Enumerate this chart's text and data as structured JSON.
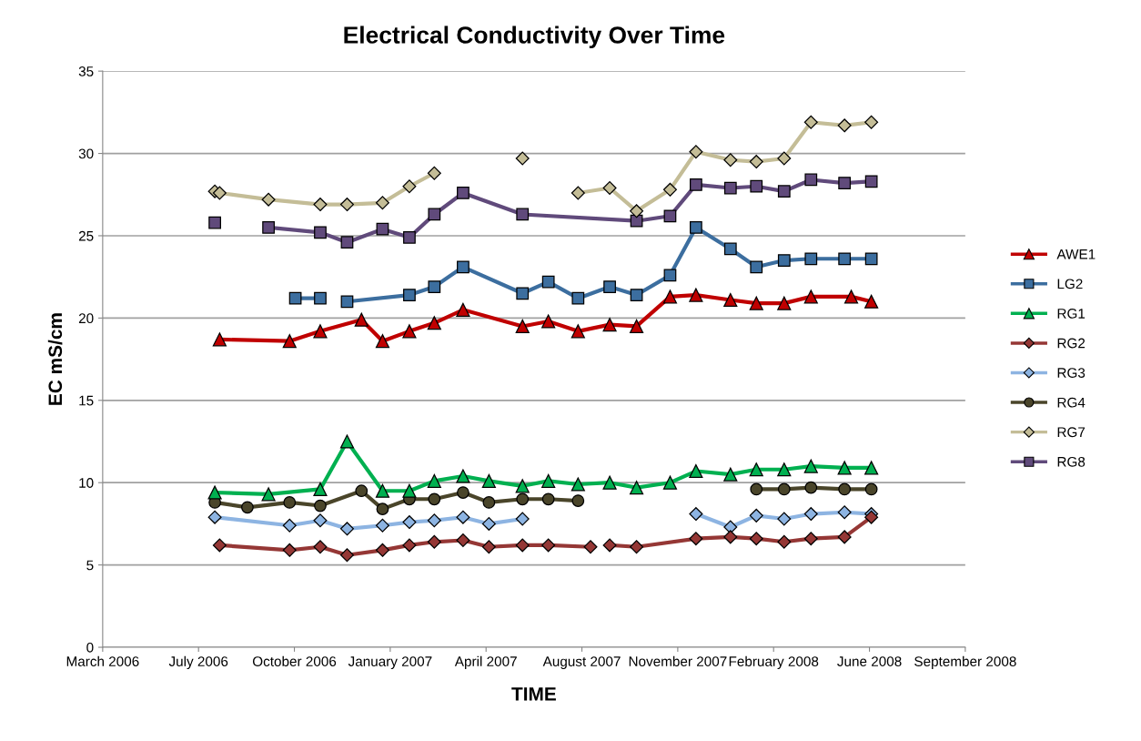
{
  "chart_data": {
    "type": "line",
    "title": "Electrical Conductivity Over Time",
    "xlabel": "TIME",
    "ylabel": "EC mS/cm",
    "xlim": [
      "2006-03-25",
      "2008-09-10"
    ],
    "xticks": [
      {
        "value": "2006-03-25",
        "label": "March 2006"
      },
      {
        "value": "2006-07-03",
        "label": "July 2006"
      },
      {
        "value": "2006-10-11",
        "label": "October 2006"
      },
      {
        "value": "2007-01-19",
        "label": "January 2007"
      },
      {
        "value": "2007-04-29",
        "label": "April 2007"
      },
      {
        "value": "2007-08-07",
        "label": "August 2007"
      },
      {
        "value": "2007-11-15",
        "label": "November 2007"
      },
      {
        "value": "2008-02-23",
        "label": "February 2008"
      },
      {
        "value": "2008-06-02",
        "label": "June 2008"
      },
      {
        "value": "2008-09-10",
        "label": "September 2008"
      }
    ],
    "ylim": [
      0,
      35
    ],
    "yticks": [
      0,
      5,
      10,
      15,
      20,
      25,
      30,
      35
    ],
    "grid": "y",
    "legend": "right",
    "series": [
      {
        "name": "AWE1",
        "color": "#c00000",
        "marker": "triangle",
        "x": [
          "2006-07-25",
          "2006-10-06",
          "2006-11-07",
          "2006-12-20",
          "2007-01-11",
          "2007-02-08",
          "2007-03-06",
          "2007-04-05",
          "2007-06-06",
          "2007-07-03",
          "2007-08-03",
          "2007-09-05",
          "2007-10-03",
          "2007-11-07",
          "2007-12-04",
          "2008-01-09",
          "2008-02-05",
          "2008-03-05",
          "2008-04-02",
          "2008-05-14",
          "2008-06-04"
        ],
        "values": [
          18.7,
          18.6,
          19.2,
          19.9,
          18.6,
          19.2,
          19.7,
          20.5,
          19.5,
          19.8,
          19.2,
          19.6,
          19.5,
          21.3,
          21.4,
          21.1,
          20.9,
          20.9,
          21.3,
          21.3,
          21.0
        ]
      },
      {
        "name": "LG2",
        "color": "#3c6e9f",
        "marker": "square",
        "x": [
          "2006-10-12",
          "2006-11-07",
          "2006-11-20",
          "2006-12-05",
          "2007-02-08",
          "2007-03-06",
          "2007-04-05",
          "2007-06-06",
          "2007-07-03",
          "2007-08-03",
          "2007-09-05",
          "2007-10-03",
          "2007-11-07",
          "2007-12-04",
          "2008-01-09",
          "2008-02-05",
          "2008-03-05",
          "2008-04-02",
          "2008-05-07",
          "2008-06-04"
        ],
        "values": [
          21.2,
          21.2,
          null,
          21.0,
          21.4,
          21.9,
          23.1,
          21.5,
          22.2,
          21.2,
          21.9,
          21.4,
          22.6,
          25.5,
          24.2,
          23.1,
          23.5,
          23.6,
          23.6,
          23.6
        ]
      },
      {
        "name": "RG1",
        "color": "#00b050",
        "marker": "triangle",
        "x": [
          "2006-07-20",
          "2006-09-14",
          "2006-11-07",
          "2006-12-05",
          "2007-01-11",
          "2007-02-08",
          "2007-03-06",
          "2007-04-05",
          "2007-05-02",
          "2007-06-06",
          "2007-07-03",
          "2007-08-03",
          "2007-09-05",
          "2007-10-03",
          "2007-11-07",
          "2007-12-04",
          "2008-01-09",
          "2008-02-05",
          "2008-03-05",
          "2008-04-02",
          "2008-05-07",
          "2008-06-04"
        ],
        "values": [
          9.4,
          9.3,
          9.6,
          12.5,
          9.5,
          9.5,
          10.1,
          10.4,
          10.1,
          9.8,
          10.1,
          9.9,
          10.0,
          9.7,
          10.0,
          10.7,
          10.5,
          10.8,
          10.8,
          11.0,
          10.9,
          10.9
        ]
      },
      {
        "name": "RG2",
        "color": "#953735",
        "marker": "diamond",
        "x": [
          "2006-07-25",
          "2006-10-06",
          "2006-11-07",
          "2006-12-05",
          "2007-01-11",
          "2007-02-08",
          "2007-03-06",
          "2007-04-05",
          "2007-05-02",
          "2007-06-06",
          "2007-07-03",
          "2007-08-16",
          "2007-08-26",
          "2007-09-05",
          "2007-10-03",
          "2007-12-04",
          "2008-01-09",
          "2008-02-05",
          "2008-03-05",
          "2008-04-02",
          "2008-05-07",
          "2008-06-04"
        ],
        "values": [
          6.2,
          5.9,
          6.1,
          5.6,
          5.9,
          6.2,
          6.4,
          6.5,
          6.1,
          6.2,
          6.2,
          6.1,
          null,
          6.2,
          6.1,
          6.6,
          6.7,
          6.6,
          6.4,
          6.6,
          6.7,
          7.9
        ]
      },
      {
        "name": "RG3",
        "color": "#8db4e2",
        "marker": "diamond",
        "x": [
          "2006-07-20",
          "2006-10-06",
          "2006-11-07",
          "2006-12-05",
          "2007-01-11",
          "2007-02-08",
          "2007-03-06",
          "2007-04-05",
          "2007-05-02",
          "2007-06-06",
          "2007-08-03",
          "2007-12-04",
          "2008-01-09",
          "2008-02-05",
          "2008-03-05",
          "2008-04-02",
          "2008-05-07",
          "2008-06-04"
        ],
        "values": [
          7.9,
          7.4,
          7.7,
          7.2,
          7.4,
          7.6,
          7.7,
          7.9,
          7.5,
          7.8,
          null,
          8.1,
          7.3,
          8.0,
          7.8,
          8.1,
          8.2,
          8.1
        ]
      },
      {
        "name": "RG4",
        "color": "#4a452a",
        "marker": "circle",
        "x": [
          "2006-07-20",
          "2006-08-23",
          "2006-10-06",
          "2006-11-07",
          "2006-12-20",
          "2007-01-11",
          "2007-02-08",
          "2007-03-06",
          "2007-04-05",
          "2007-05-02",
          "2007-06-06",
          "2007-07-03",
          "2007-08-03",
          "2007-11-07",
          "2008-02-05",
          "2008-03-05",
          "2008-04-02",
          "2008-05-07",
          "2008-06-04"
        ],
        "values": [
          8.8,
          8.5,
          8.8,
          8.6,
          9.5,
          8.4,
          9.0,
          9.0,
          9.4,
          8.8,
          9.0,
          9.0,
          8.9,
          null,
          9.6,
          9.6,
          9.7,
          9.6,
          9.6
        ]
      },
      {
        "name": "RG7",
        "color": "#c4bd97",
        "marker": "diamond",
        "x": [
          "2006-07-20",
          "2006-07-25",
          "2006-09-14",
          "2006-11-07",
          "2006-12-05",
          "2007-01-11",
          "2007-02-08",
          "2007-03-06",
          "2007-04-05",
          "2007-06-06",
          "2007-07-03",
          "2007-08-03",
          "2007-09-05",
          "2007-10-03",
          "2007-11-07",
          "2007-12-04",
          "2008-01-09",
          "2008-02-05",
          "2008-03-05",
          "2008-04-02",
          "2008-05-07",
          "2008-06-04"
        ],
        "values": [
          27.7,
          27.6,
          27.2,
          26.9,
          26.9,
          27.0,
          28.0,
          28.8,
          null,
          29.7,
          null,
          27.6,
          27.9,
          26.5,
          27.8,
          30.1,
          29.6,
          29.5,
          29.7,
          31.9,
          31.7,
          31.9
        ]
      },
      {
        "name": "RG8",
        "color": "#604a7b",
        "marker": "square",
        "x": [
          "2006-07-20",
          "2006-07-25",
          "2006-09-14",
          "2006-11-07",
          "2006-12-05",
          "2007-01-11",
          "2007-02-08",
          "2007-03-06",
          "2007-04-05",
          "2007-06-06",
          "2007-10-03",
          "2007-11-07",
          "2007-12-04",
          "2008-01-09",
          "2008-02-05",
          "2008-03-05",
          "2008-04-02",
          "2008-05-07",
          "2008-06-04"
        ],
        "values": [
          25.8,
          null,
          25.5,
          25.2,
          24.6,
          25.4,
          24.9,
          26.3,
          27.6,
          26.3,
          25.9,
          26.2,
          28.1,
          27.9,
          28.0,
          27.7,
          28.4,
          28.2,
          28.3
        ]
      }
    ]
  }
}
